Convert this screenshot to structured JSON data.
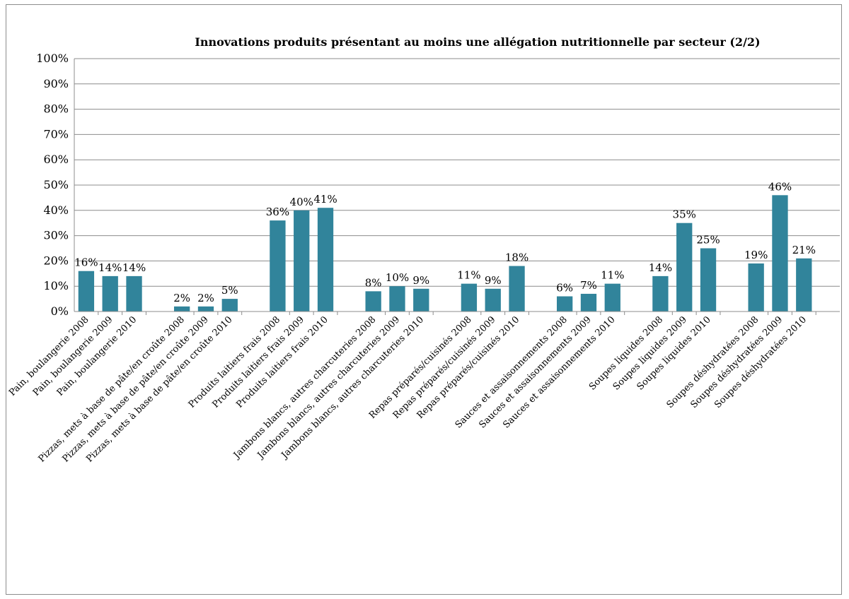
{
  "chart_data": {
    "type": "bar",
    "title": "Innovations produits présentant au moins une allégation nutritionnelle par secteur (2/2)",
    "xlabel": "",
    "ylabel": "",
    "ylim": [
      0,
      100
    ],
    "y_ticks": [
      "0%",
      "10%",
      "20%",
      "30%",
      "40%",
      "50%",
      "60%",
      "70%",
      "80%",
      "90%",
      "100%"
    ],
    "grid": true,
    "legend": "none",
    "bar_color": "#31849b",
    "groups": [
      {
        "categories": [
          "Pain, boulangerie  2008",
          "Pain, boulangerie  2009",
          "Pain, boulangerie  2010"
        ],
        "values": [
          16,
          14,
          14
        ],
        "labels": [
          "16%",
          "14%",
          "14%"
        ]
      },
      {
        "categories": [
          "Pizzas, mets à base de pâte/en  croûte 2008",
          "Pizzas, mets à base de pâte/en  croûte 2009",
          "Pizzas, mets à base de pâte/en  croûte 2010"
        ],
        "values": [
          2,
          2,
          5
        ],
        "labels": [
          "2%",
          "2%",
          "5%"
        ]
      },
      {
        "categories": [
          "Produits laitiers frais 2008",
          "Produits laitiers frais 2009",
          "Produits laitiers frais 2010"
        ],
        "values": [
          36,
          40,
          41
        ],
        "labels": [
          "36%",
          "40%",
          "41%"
        ]
      },
      {
        "categories": [
          "Jambons blancs, autres charcuteries 2008",
          "Jambons blancs, autres charcuteries 2009",
          "Jambons blancs, autres charcuteries 2010"
        ],
        "values": [
          8,
          10,
          9
        ],
        "labels": [
          "8%",
          "10%",
          "9%"
        ]
      },
      {
        "categories": [
          "Repas préparés/cuisinés  2008",
          "Repas préparés/cuisinés  2009",
          "Repas préparés/cuisinés  2010"
        ],
        "values": [
          11,
          9,
          18
        ],
        "labels": [
          "11%",
          "9%",
          "18%"
        ]
      },
      {
        "categories": [
          "Sauces et assaisonnements  2008",
          "Sauces et assaisonnements  2009",
          "Sauces et assaisonnements  2010"
        ],
        "values": [
          6,
          7,
          11
        ],
        "labels": [
          "6%",
          "7%",
          "11%"
        ]
      },
      {
        "categories": [
          "Soupes liquides 2008",
          "Soupes liquides 2009",
          "Soupes liquides 2010"
        ],
        "values": [
          14,
          35,
          25
        ],
        "labels": [
          "14%",
          "35%",
          "25%"
        ]
      },
      {
        "categories": [
          "Soupes déshydratées 2008",
          "Soupes déshydratées 2009",
          "Soupes déshydratées 2010"
        ],
        "values": [
          19,
          46,
          21
        ],
        "labels": [
          "19%",
          "46%",
          "21%"
        ]
      }
    ]
  }
}
